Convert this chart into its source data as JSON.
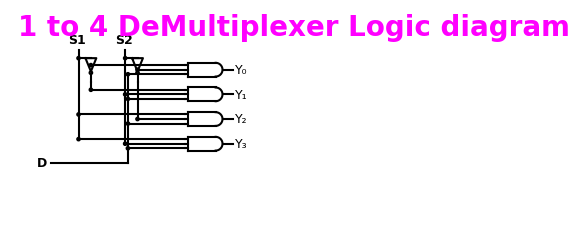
{
  "title": "1 to 4 DeMultiplexer Logic diagram",
  "title_color": "#FF00FF",
  "title_fontsize": 20,
  "bg_color": "#FFFFFF",
  "line_color": "#000000",
  "s1_label": "S1",
  "s2_label": "S2",
  "d_label": "D",
  "outputs": [
    "Y₀",
    "Y₁",
    "Y₂",
    "Y₃"
  ]
}
